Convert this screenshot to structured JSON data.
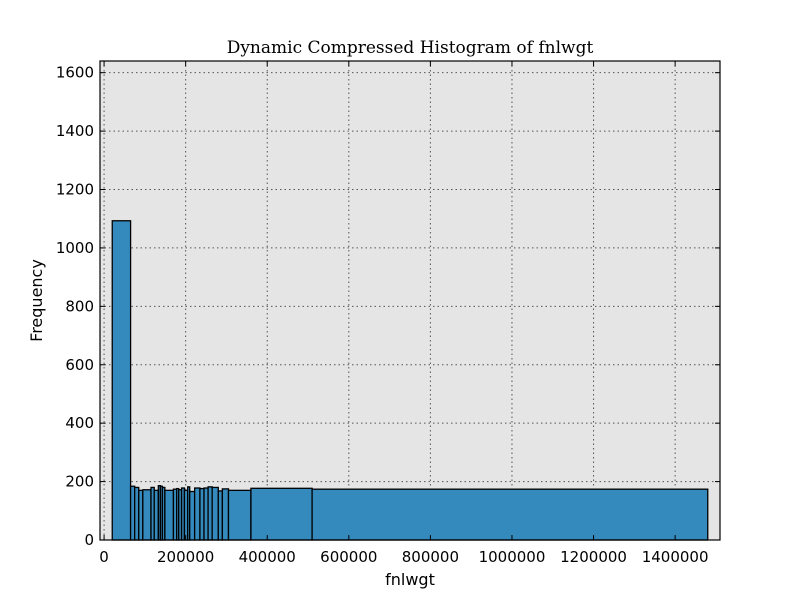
{
  "chart_data": {
    "type": "bar",
    "title": "Dynamic Compressed Histogram of fnlwgt",
    "xlabel": "fnlwgt",
    "ylabel": "Frequency",
    "xlim": [
      -10000,
      1510000
    ],
    "ylim": [
      0,
      1640
    ],
    "xticks": [
      0,
      200000,
      400000,
      600000,
      800000,
      1000000,
      1200000,
      1400000
    ],
    "xtick_labels": [
      "0",
      "200000",
      "400000",
      "600000",
      "800000",
      "1000000",
      "1200000",
      "1400000"
    ],
    "yticks": [
      0,
      200,
      400,
      600,
      800,
      1000,
      1200,
      1400,
      1600
    ],
    "ytick_labels": [
      "0",
      "200",
      "400",
      "600",
      "800",
      "1000",
      "1200",
      "1400",
      "1600"
    ],
    "grid": true,
    "background": "#E5E5E5",
    "bar_color": "#348ABD",
    "bins": [
      {
        "x0": 20000,
        "x1": 65000,
        "count": 1093
      },
      {
        "x0": 65000,
        "x1": 75000,
        "count": 184
      },
      {
        "x0": 75000,
        "x1": 85000,
        "count": 180
      },
      {
        "x0": 85000,
        "x1": 95000,
        "count": 170
      },
      {
        "x0": 95000,
        "x1": 115000,
        "count": 172
      },
      {
        "x0": 115000,
        "x1": 123000,
        "count": 180
      },
      {
        "x0": 123000,
        "x1": 133000,
        "count": 170
      },
      {
        "x0": 133000,
        "x1": 138000,
        "count": 186
      },
      {
        "x0": 138000,
        "x1": 143000,
        "count": 184
      },
      {
        "x0": 143000,
        "x1": 149000,
        "count": 180
      },
      {
        "x0": 149000,
        "x1": 170000,
        "count": 170
      },
      {
        "x0": 170000,
        "x1": 178000,
        "count": 174
      },
      {
        "x0": 178000,
        "x1": 183000,
        "count": 176
      },
      {
        "x0": 183000,
        "x1": 190000,
        "count": 172
      },
      {
        "x0": 190000,
        "x1": 197000,
        "count": 178
      },
      {
        "x0": 197000,
        "x1": 205000,
        "count": 170
      },
      {
        "x0": 205000,
        "x1": 210000,
        "count": 182
      },
      {
        "x0": 210000,
        "x1": 222000,
        "count": 166
      },
      {
        "x0": 222000,
        "x1": 235000,
        "count": 178
      },
      {
        "x0": 235000,
        "x1": 245000,
        "count": 176
      },
      {
        "x0": 245000,
        "x1": 255000,
        "count": 178
      },
      {
        "x0": 255000,
        "x1": 265000,
        "count": 182
      },
      {
        "x0": 265000,
        "x1": 280000,
        "count": 180
      },
      {
        "x0": 280000,
        "x1": 290000,
        "count": 168
      },
      {
        "x0": 290000,
        "x1": 305000,
        "count": 175
      },
      {
        "x0": 305000,
        "x1": 360000,
        "count": 170
      },
      {
        "x0": 360000,
        "x1": 510000,
        "count": 177
      },
      {
        "x0": 510000,
        "x1": 1480000,
        "count": 174
      }
    ]
  }
}
